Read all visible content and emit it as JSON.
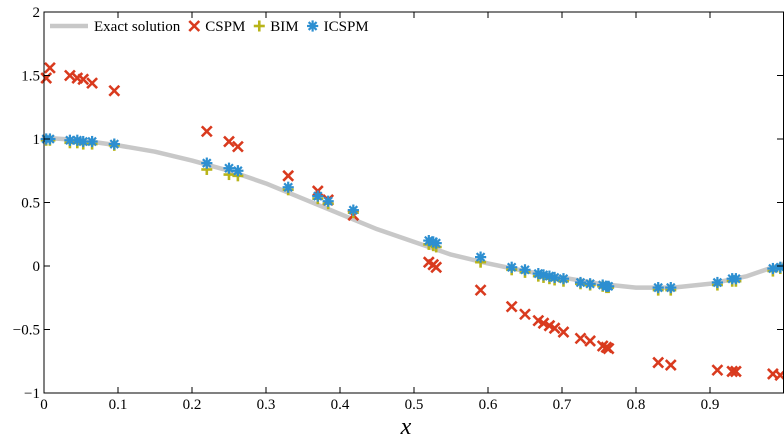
{
  "chart_data": {
    "type": "scatter",
    "title": "",
    "xlabel": "x",
    "ylabel": "",
    "xlim": [
      0,
      1
    ],
    "ylim": [
      -1,
      2
    ],
    "xticks": [
      0,
      0.1,
      0.2,
      0.3,
      0.4,
      0.5,
      0.6,
      0.7,
      0.8,
      0.9,
      1
    ],
    "xtick_labels": [
      "0",
      "0.1",
      "0.2",
      "0.3",
      "0.4",
      "0.5",
      "0.6",
      "0.7",
      "0.8",
      "0.9",
      ""
    ],
    "yticks": [
      -1,
      -0.5,
      0,
      0.5,
      1,
      1.5,
      2
    ],
    "ytick_labels": [
      "−1",
      "−0.5",
      "0",
      "0.5",
      "1",
      "1.5",
      "2"
    ],
    "grid": false,
    "legend_position": "top-left",
    "series": [
      {
        "name": "Exact solution",
        "kind": "line",
        "color": "#c8c8c8",
        "x": [
          0,
          0.05,
          0.1,
          0.15,
          0.2,
          0.25,
          0.3,
          0.35,
          0.4,
          0.45,
          0.5,
          0.55,
          0.6,
          0.65,
          0.7,
          0.75,
          0.8,
          0.85,
          0.9,
          0.95,
          1.0
        ],
        "y": [
          1.01,
          0.99,
          0.95,
          0.9,
          0.83,
          0.75,
          0.65,
          0.53,
          0.41,
          0.29,
          0.19,
          0.09,
          0.02,
          -0.04,
          -0.09,
          -0.14,
          -0.17,
          -0.17,
          -0.14,
          -0.08,
          0.02
        ]
      },
      {
        "name": "CSPM",
        "kind": "marker",
        "marker": "x",
        "color": "#d93a1e",
        "x": [
          0.003,
          0.008,
          0.035,
          0.045,
          0.053,
          0.065,
          0.095,
          0.22,
          0.25,
          0.262,
          0.33,
          0.37,
          0.384,
          0.418,
          0.52,
          0.526,
          0.53,
          0.59,
          0.632,
          0.65,
          0.668,
          0.675,
          0.683,
          0.69,
          0.702,
          0.725,
          0.738,
          0.755,
          0.76,
          0.763,
          0.83,
          0.847,
          0.91,
          0.93,
          0.935,
          0.985,
          0.995
        ],
        "y": [
          1.48,
          1.56,
          1.5,
          1.48,
          1.47,
          1.44,
          1.38,
          1.06,
          0.98,
          0.94,
          0.71,
          0.59,
          0.52,
          0.4,
          0.03,
          0.01,
          -0.01,
          -0.19,
          -0.32,
          -0.38,
          -0.43,
          -0.45,
          -0.47,
          -0.49,
          -0.52,
          -0.57,
          -0.59,
          -0.63,
          -0.64,
          -0.65,
          -0.76,
          -0.78,
          -0.82,
          -0.83,
          -0.83,
          -0.85,
          -0.86
        ]
      },
      {
        "name": "BIM",
        "kind": "marker",
        "marker": "plus",
        "color": "#b8b41a",
        "x": [
          0.003,
          0.008,
          0.035,
          0.045,
          0.053,
          0.065,
          0.095,
          0.22,
          0.25,
          0.262,
          0.33,
          0.37,
          0.384,
          0.418,
          0.52,
          0.526,
          0.53,
          0.59,
          0.632,
          0.65,
          0.668,
          0.675,
          0.683,
          0.69,
          0.702,
          0.725,
          0.738,
          0.755,
          0.76,
          0.763,
          0.83,
          0.847,
          0.91,
          0.93,
          0.935,
          0.985,
          0.995
        ],
        "y": [
          0.99,
          0.99,
          0.97,
          0.97,
          0.96,
          0.96,
          0.95,
          0.76,
          0.72,
          0.71,
          0.6,
          0.53,
          0.49,
          0.42,
          0.17,
          0.16,
          0.15,
          0.03,
          -0.03,
          -0.05,
          -0.08,
          -0.09,
          -0.1,
          -0.11,
          -0.12,
          -0.14,
          -0.15,
          -0.16,
          -0.17,
          -0.17,
          -0.19,
          -0.19,
          -0.15,
          -0.12,
          -0.12,
          -0.04,
          -0.02
        ]
      },
      {
        "name": "ICSPM",
        "kind": "marker",
        "marker": "asterisk",
        "color": "#2d8fd1",
        "x": [
          0.003,
          0.008,
          0.035,
          0.045,
          0.053,
          0.065,
          0.095,
          0.22,
          0.25,
          0.262,
          0.33,
          0.37,
          0.384,
          0.418,
          0.52,
          0.526,
          0.53,
          0.59,
          0.632,
          0.65,
          0.668,
          0.675,
          0.683,
          0.69,
          0.702,
          0.725,
          0.738,
          0.755,
          0.76,
          0.763,
          0.83,
          0.847,
          0.91,
          0.93,
          0.935,
          0.985,
          0.995
        ],
        "y": [
          1.0,
          1.0,
          0.99,
          0.99,
          0.98,
          0.98,
          0.96,
          0.81,
          0.77,
          0.75,
          0.62,
          0.55,
          0.51,
          0.44,
          0.2,
          0.19,
          0.18,
          0.07,
          -0.01,
          -0.03,
          -0.06,
          -0.07,
          -0.08,
          -0.09,
          -0.1,
          -0.13,
          -0.14,
          -0.15,
          -0.16,
          -0.16,
          -0.17,
          -0.17,
          -0.13,
          -0.1,
          -0.1,
          -0.02,
          -0.01
        ]
      }
    ]
  }
}
